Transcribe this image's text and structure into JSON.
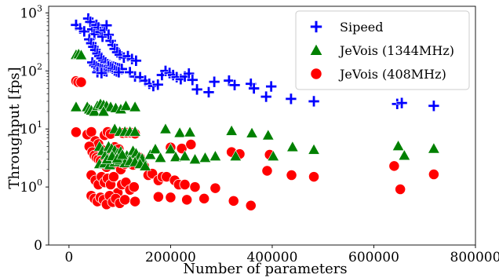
{
  "chart_data": {
    "type": "scatter",
    "xlabel": "Number of parameters",
    "ylabel": "Throughput [fps]",
    "xlim": [
      -40000,
      800000
    ],
    "y_scale": "symlog",
    "ylim": [
      0,
      1300
    ],
    "xticks": [
      0,
      200000,
      400000,
      600000,
      800000
    ],
    "xtick_labels": [
      "0",
      "200000",
      "400000",
      "600000",
      "800000"
    ],
    "yticks": [
      0,
      1,
      10,
      100,
      1000
    ],
    "ytick_labels": [
      {
        "base": "0",
        "exp": ""
      },
      {
        "base": "10",
        "exp": "0"
      },
      {
        "base": "10",
        "exp": "1"
      },
      {
        "base": "10",
        "exp": "2"
      },
      {
        "base": "10",
        "exp": "3"
      }
    ],
    "grid": false,
    "legend_position": "top-right",
    "series": [
      {
        "name": "Sipeed",
        "marker": "plus",
        "color": "#0000ff",
        "points": [
          [
            14000,
            620
          ],
          [
            22000,
            540
          ],
          [
            30000,
            480
          ],
          [
            38000,
            800
          ],
          [
            42000,
            700
          ],
          [
            46000,
            520
          ],
          [
            50000,
            430
          ],
          [
            54000,
            620
          ],
          [
            58000,
            560
          ],
          [
            62000,
            470
          ],
          [
            66000,
            390
          ],
          [
            70000,
            500
          ],
          [
            74000,
            610
          ],
          [
            78000,
            420
          ],
          [
            82000,
            330
          ],
          [
            86000,
            280
          ],
          [
            90000,
            240
          ],
          [
            95000,
            210
          ],
          [
            100000,
            190
          ],
          [
            108000,
            170
          ],
          [
            116000,
            180
          ],
          [
            124000,
            160
          ],
          [
            132000,
            150
          ],
          [
            40000,
            350
          ],
          [
            44000,
            300
          ],
          [
            48000,
            260
          ],
          [
            52000,
            230
          ],
          [
            56000,
            200
          ],
          [
            60000,
            180
          ],
          [
            64000,
            165
          ],
          [
            68000,
            150
          ],
          [
            72000,
            140
          ],
          [
            76000,
            130
          ],
          [
            80000,
            125
          ],
          [
            84000,
            120
          ],
          [
            88000,
            118
          ],
          [
            92000,
            115
          ],
          [
            96000,
            112
          ],
          [
            100000,
            110
          ],
          [
            104000,
            108
          ],
          [
            46000,
            140
          ],
          [
            50000,
            125
          ],
          [
            54000,
            118
          ],
          [
            58000,
            112
          ],
          [
            62000,
            108
          ],
          [
            66000,
            105
          ],
          [
            70000,
            100
          ],
          [
            74000,
            98
          ],
          [
            78000,
            120
          ],
          [
            82000,
            115
          ],
          [
            86000,
            110
          ],
          [
            90000,
            102
          ],
          [
            94000,
            98
          ],
          [
            98000,
            95
          ],
          [
            56000,
            95
          ],
          [
            64000,
            92
          ],
          [
            120000,
            95
          ],
          [
            130000,
            80
          ],
          [
            140000,
            78
          ],
          [
            150000,
            68
          ],
          [
            158000,
            60
          ],
          [
            166000,
            55
          ],
          [
            175000,
            58
          ],
          [
            183000,
            85
          ],
          [
            190000,
            100
          ],
          [
            198000,
            92
          ],
          [
            205000,
            85
          ],
          [
            212000,
            78
          ],
          [
            220000,
            72
          ],
          [
            228000,
            80
          ],
          [
            236000,
            90
          ],
          [
            243000,
            70
          ],
          [
            252000,
            48
          ],
          [
            275000,
            43
          ],
          [
            286000,
            65
          ],
          [
            315000,
            68
          ],
          [
            326000,
            57
          ],
          [
            358000,
            60
          ],
          [
            364000,
            50
          ],
          [
            388000,
            36
          ],
          [
            398000,
            54
          ],
          [
            437000,
            33
          ],
          [
            482000,
            30
          ],
          [
            646000,
            27
          ],
          [
            655000,
            28
          ],
          [
            718000,
            25
          ]
        ]
      },
      {
        "name": "JeVois (1344MHz)",
        "marker": "triangle",
        "color": "#008000",
        "points": [
          [
            14000,
            190
          ],
          [
            19000,
            195
          ],
          [
            24000,
            188
          ],
          [
            14000,
            24
          ],
          [
            36000,
            24
          ],
          [
            40000,
            22
          ],
          [
            44000,
            21
          ],
          [
            50000,
            20
          ],
          [
            56000,
            25
          ],
          [
            62000,
            27
          ],
          [
            68000,
            26
          ],
          [
            74000,
            25
          ],
          [
            82000,
            24
          ],
          [
            92000,
            23
          ],
          [
            102000,
            22
          ],
          [
            112000,
            25
          ],
          [
            130000,
            24
          ],
          [
            68000,
            20
          ],
          [
            90000,
            10
          ],
          [
            100000,
            9
          ],
          [
            110000,
            9
          ],
          [
            120000,
            9
          ],
          [
            130000,
            9
          ],
          [
            60000,
            5
          ],
          [
            66000,
            4.2
          ],
          [
            72000,
            3.6
          ],
          [
            78000,
            5
          ],
          [
            84000,
            4.6
          ],
          [
            90000,
            4.3
          ],
          [
            96000,
            3.8
          ],
          [
            102000,
            4.1
          ],
          [
            108000,
            3.2
          ],
          [
            114000,
            3.5
          ],
          [
            120000,
            3.0
          ],
          [
            126000,
            4.2
          ],
          [
            132000,
            3.8
          ],
          [
            138000,
            3.3
          ],
          [
            144000,
            3.1
          ],
          [
            60000,
            2.5
          ],
          [
            70000,
            2.6
          ],
          [
            80000,
            2.4
          ],
          [
            90000,
            2.7
          ],
          [
            100000,
            2.9
          ],
          [
            110000,
            2.6
          ],
          [
            120000,
            2.8
          ],
          [
            130000,
            2.7
          ],
          [
            140000,
            2.5
          ],
          [
            150000,
            2.3
          ],
          [
            75000,
            3.0
          ],
          [
            85000,
            3.4
          ],
          [
            95000,
            3.1
          ],
          [
            105000,
            3.6
          ],
          [
            160000,
            3.6
          ],
          [
            170000,
            4.5
          ],
          [
            180000,
            3.2
          ],
          [
            190000,
            10
          ],
          [
            200000,
            4.5
          ],
          [
            210000,
            3.3
          ],
          [
            218000,
            8.6
          ],
          [
            228000,
            3.4
          ],
          [
            238000,
            8.8
          ],
          [
            248000,
            3.0
          ],
          [
            268000,
            3.2
          ],
          [
            288000,
            3.4
          ],
          [
            320000,
            9.3
          ],
          [
            328000,
            3.4
          ],
          [
            360000,
            8.5
          ],
          [
            392000,
            7.8
          ],
          [
            402000,
            3.4
          ],
          [
            440000,
            4.9
          ],
          [
            482000,
            4.4
          ],
          [
            648000,
            5.1
          ],
          [
            660000,
            3.5
          ],
          [
            718000,
            4.6
          ]
        ]
      },
      {
        "name": "JeVois (408MHz)",
        "marker": "circle",
        "color": "#ff0000",
        "points": [
          [
            14000,
            67
          ],
          [
            18000,
            64
          ],
          [
            24000,
            64
          ],
          [
            14000,
            8.8
          ],
          [
            36000,
            8
          ],
          [
            44000,
            8.9
          ],
          [
            52000,
            6.2
          ],
          [
            58000,
            5.5
          ],
          [
            64000,
            4.4
          ],
          [
            70000,
            7.8
          ],
          [
            76000,
            8.9
          ],
          [
            82000,
            8.2
          ],
          [
            90000,
            4.9
          ],
          [
            98000,
            4.5
          ],
          [
            106000,
            8.5
          ],
          [
            114000,
            8.6
          ],
          [
            122000,
            8.6
          ],
          [
            130000,
            8.3
          ],
          [
            40000,
            5.0
          ],
          [
            46000,
            4.0
          ],
          [
            50000,
            3.5
          ],
          [
            54000,
            3.2
          ],
          [
            58000,
            3.0
          ],
          [
            62000,
            2.8
          ],
          [
            66000,
            2.5
          ],
          [
            70000,
            2.4
          ],
          [
            74000,
            2.2
          ],
          [
            78000,
            3.5
          ],
          [
            82000,
            2.8
          ],
          [
            86000,
            3.1
          ],
          [
            90000,
            2.5
          ],
          [
            94000,
            2.8
          ],
          [
            98000,
            2.6
          ],
          [
            102000,
            2.0
          ],
          [
            106000,
            2.7
          ],
          [
            110000,
            2.5
          ],
          [
            114000,
            3.2
          ],
          [
            118000,
            3.0
          ],
          [
            122000,
            2.6
          ],
          [
            126000,
            2.4
          ],
          [
            132000,
            2.8
          ],
          [
            140000,
            3.2
          ],
          [
            148000,
            2.3
          ],
          [
            156000,
            1.6
          ],
          [
            164000,
            1.7
          ],
          [
            176000,
            1.3
          ],
          [
            184000,
            1.5
          ],
          [
            192000,
            1.5
          ],
          [
            200000,
            4.8
          ],
          [
            208000,
            1.3
          ],
          [
            216000,
            1.1
          ],
          [
            222000,
            4.6
          ],
          [
            228000,
            1.1
          ],
          [
            240000,
            5.4
          ],
          [
            248000,
            1.0
          ],
          [
            288000,
            0.98
          ],
          [
            320000,
            4.0
          ],
          [
            336000,
            3.7
          ],
          [
            390000,
            1.9
          ],
          [
            395000,
            3.6
          ],
          [
            438000,
            1.6
          ],
          [
            482000,
            1.5
          ],
          [
            640000,
            2.3
          ],
          [
            652000,
            0.96
          ],
          [
            718000,
            1.65
          ],
          [
            44000,
            1.6
          ],
          [
            52000,
            1.3
          ],
          [
            58000,
            1.1
          ],
          [
            64000,
            1.5
          ],
          [
            70000,
            1.2
          ],
          [
            76000,
            1.4
          ],
          [
            82000,
            1.1
          ],
          [
            88000,
            1.5
          ],
          [
            96000,
            0.9
          ],
          [
            104000,
            1.1
          ],
          [
            112000,
            1.2
          ],
          [
            120000,
            0.95
          ],
          [
            128000,
            1.0
          ],
          [
            44000,
            0.85
          ],
          [
            50000,
            0.8
          ],
          [
            56000,
            0.75
          ],
          [
            62000,
            0.82
          ],
          [
            68000,
            0.78
          ],
          [
            74000,
            0.7
          ],
          [
            80000,
            0.85
          ],
          [
            86000,
            0.74
          ],
          [
            92000,
            0.8
          ],
          [
            100000,
            0.72
          ],
          [
            110000,
            0.78
          ],
          [
            130000,
            0.75
          ],
          [
            176000,
            0.83
          ],
          [
            200000,
            0.82
          ],
          [
            232000,
            0.78
          ],
          [
            266000,
            0.8
          ],
          [
            324000,
            0.76
          ],
          [
            358000,
            0.68
          ]
        ]
      }
    ]
  }
}
